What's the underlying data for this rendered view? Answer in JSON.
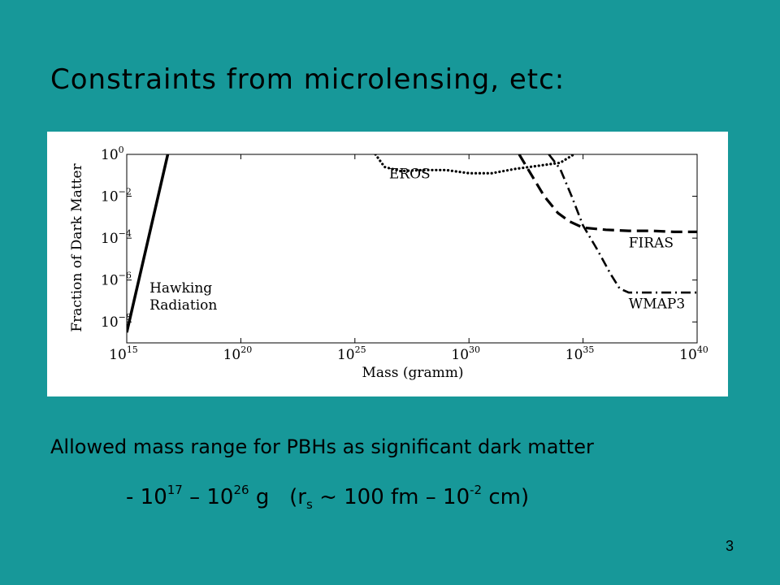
{
  "slide": {
    "title": "Constraints from microlensing, etc:",
    "allowed_range_text": "Allowed mass range for PBHs as significant dark matter",
    "mass_range": {
      "dash": "-",
      "low_base": "10",
      "low_exp": "17",
      "sep1": "–",
      "high_base": "10",
      "high_exp": "26",
      "unit": "g",
      "paren_open": "(r",
      "r_sub": "s",
      "approx": "~ 100 fm",
      "sep2": "–",
      "cm_base": "10",
      "cm_exp": "-2",
      "cm_unit": "cm)"
    },
    "page_number": "3",
    "colors": {
      "background": "#179899",
      "panel": "#ffffff",
      "ink": "#000000"
    }
  },
  "chart_data": {
    "type": "line",
    "title": "",
    "xlabel": "Mass (gramm)",
    "ylabel": "Fraction of Dark Matter",
    "xscale": "log",
    "yscale": "log",
    "xlim": [
      1000000000000000.0,
      1e+40
    ],
    "ylim": [
      1e-09,
      1
    ],
    "x_ticks": [
      {
        "base": "10",
        "exp": "15",
        "log": 15
      },
      {
        "base": "10",
        "exp": "20",
        "log": 20
      },
      {
        "base": "10",
        "exp": "25",
        "log": 25
      },
      {
        "base": "10",
        "exp": "30",
        "log": 30
      },
      {
        "base": "10",
        "exp": "35",
        "log": 35
      },
      {
        "base": "10",
        "exp": "40",
        "log": 40
      }
    ],
    "y_ticks": [
      {
        "base": "10",
        "exp": "0",
        "log": 0
      },
      {
        "base": "10",
        "exp": "−2",
        "log": -2
      },
      {
        "base": "10",
        "exp": "−4",
        "log": -4
      },
      {
        "base": "10",
        "exp": "−6",
        "log": -6
      },
      {
        "base": "10",
        "exp": "−8",
        "log": -8
      }
    ],
    "grid": false,
    "series": [
      {
        "name": "Hawking Radiation",
        "label_lines": [
          "Hawking",
          "Radiation"
        ],
        "style": "solid",
        "points_log": [
          [
            15,
            -8.5
          ],
          [
            16.8,
            0
          ]
        ]
      },
      {
        "name": "EROS",
        "label_lines": [
          "EROS"
        ],
        "style": "dotted",
        "points_log": [
          [
            25.9,
            0
          ],
          [
            26.3,
            -0.6
          ],
          [
            27,
            -0.8
          ],
          [
            28,
            -0.75
          ],
          [
            29,
            -0.75
          ],
          [
            30,
            -0.9
          ],
          [
            31,
            -0.9
          ],
          [
            32,
            -0.7
          ],
          [
            33,
            -0.55
          ],
          [
            34,
            -0.4
          ],
          [
            34.6,
            0
          ]
        ]
      },
      {
        "name": "FIRAS",
        "label_lines": [
          "FIRAS"
        ],
        "style": "dashed",
        "points_log": [
          [
            32.2,
            0
          ],
          [
            33.3,
            -2
          ],
          [
            33.9,
            -2.8
          ],
          [
            34.4,
            -3.2
          ],
          [
            35,
            -3.5
          ],
          [
            36,
            -3.6
          ],
          [
            37,
            -3.65
          ],
          [
            38,
            -3.65
          ],
          [
            39,
            -3.7
          ],
          [
            40,
            -3.7
          ]
        ]
      },
      {
        "name": "WMAP3",
        "label_lines": [
          "WMAP3"
        ],
        "style": "dashdot",
        "points_log": [
          [
            33.5,
            0
          ],
          [
            34,
            -0.7
          ],
          [
            34.5,
            -2
          ],
          [
            35,
            -3.4
          ],
          [
            35.6,
            -4.5
          ],
          [
            36.2,
            -5.7
          ],
          [
            36.6,
            -6.4
          ],
          [
            37,
            -6.6
          ],
          [
            38,
            -6.6
          ],
          [
            39,
            -6.6
          ],
          [
            40,
            -6.6
          ]
        ]
      }
    ]
  }
}
